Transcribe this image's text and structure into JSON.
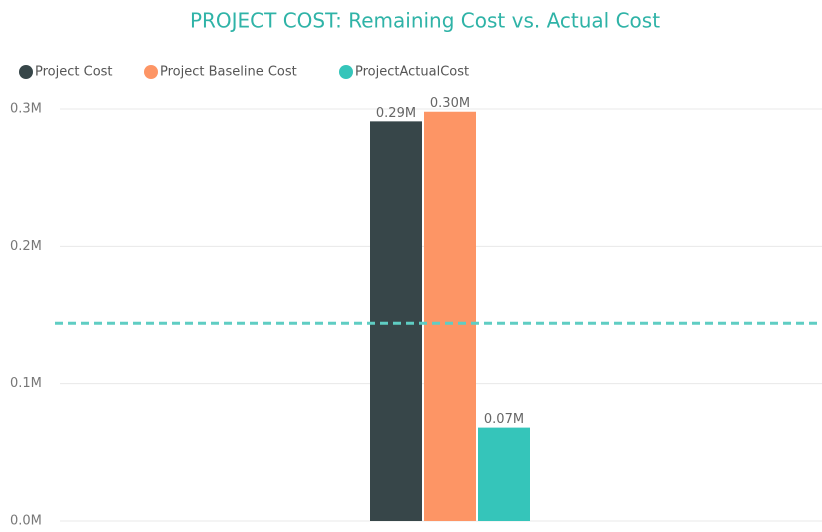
{
  "chart_data": {
    "type": "bar",
    "title": "PROJECT COST:  Remaining Cost vs. Actual Cost",
    "categories": [
      null
    ],
    "series": [
      {
        "name": "Project Cost",
        "color": "#374649",
        "values": [
          291000
        ],
        "value_labels": [
          "0.29M"
        ]
      },
      {
        "name": "Project Baseline Cost",
        "color": "#fd9565",
        "values": [
          298000
        ],
        "value_labels": [
          "0.30M"
        ]
      },
      {
        "name": "ProjectActualCost",
        "color": "#35c5ba",
        "values": [
          68000
        ],
        "value_labels": [
          "0.07M"
        ]
      }
    ],
    "ylim": [
      0,
      300000
    ],
    "yticks": [
      {
        "value": 0,
        "label": "0.0M"
      },
      {
        "value": 100000,
        "label": "0.1M"
      },
      {
        "value": 200000,
        "label": "0.2M"
      },
      {
        "value": 300000,
        "label": "0.3M"
      }
    ],
    "grid": true,
    "legend": "top-left",
    "reference_line": {
      "value": 144000,
      "color": "#5fcdc3"
    }
  }
}
